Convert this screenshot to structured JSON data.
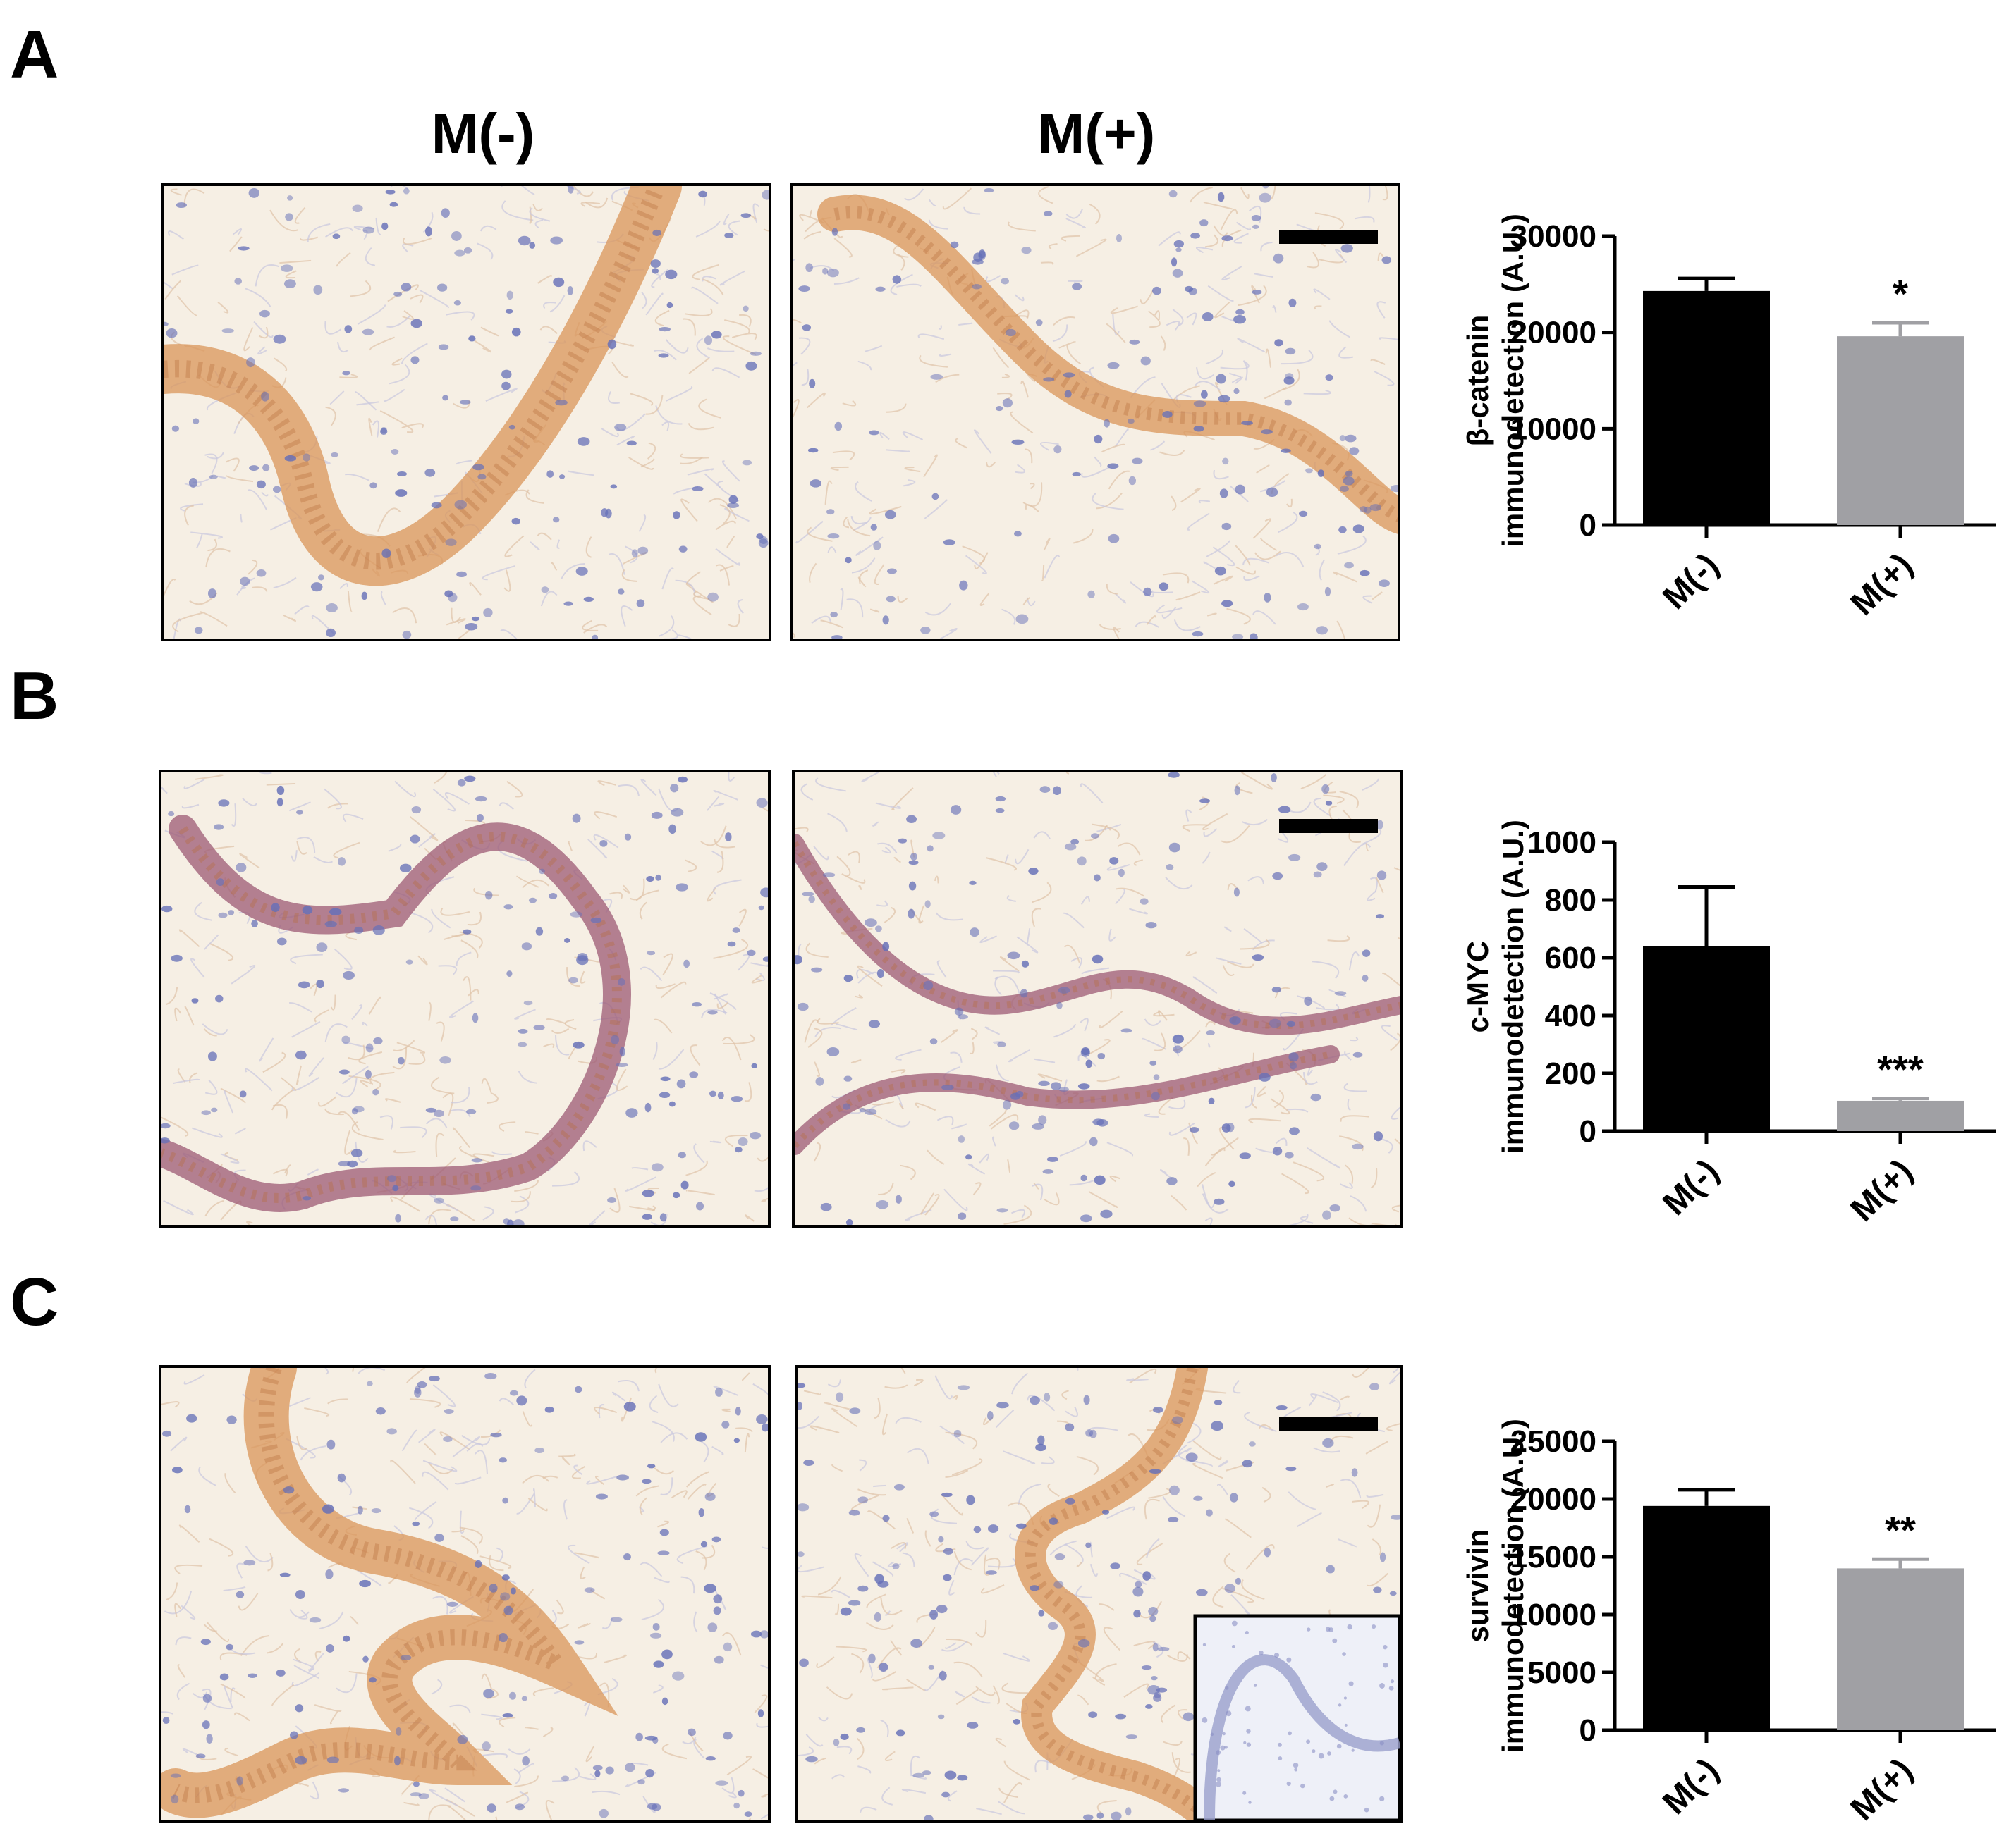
{
  "panels": [
    {
      "letter": "A"
    },
    {
      "letter": "B"
    },
    {
      "letter": "C"
    }
  ],
  "columns": [
    "M(-)",
    "M(+)"
  ],
  "colors": {
    "bar_minus": "#000000",
    "bar_plus": "#a0a0a4",
    "stain_brown": "#d9955a",
    "stain_purple": "#9c5a74",
    "nuclei": "#6670b8",
    "background": "#f6efe4"
  },
  "chart_data": [
    {
      "type": "bar",
      "categories": [
        "M(-)",
        "M(+)"
      ],
      "values": [
        24300,
        19600
      ],
      "errors": [
        1300,
        1400
      ],
      "significance": [
        "",
        "*"
      ],
      "ylabel_line1": "β-catenin",
      "ylabel_line2": "immunodetection  (A.U.)",
      "ylim": [
        0,
        30000
      ],
      "yticks": [
        0,
        10000,
        20000,
        30000
      ],
      "ytick_labels": [
        "0",
        "10000",
        "20000",
        "30000"
      ]
    },
    {
      "type": "bar",
      "categories": [
        "M(-)",
        "M(+)"
      ],
      "values": [
        640,
        105
      ],
      "errors": [
        205,
        8
      ],
      "significance": [
        "",
        "***"
      ],
      "ylabel_line1": "c-MYC",
      "ylabel_line2": "immunodetection  (A.U.)",
      "ylim": [
        0,
        1000
      ],
      "yticks": [
        0,
        200,
        400,
        600,
        800,
        1000
      ],
      "ytick_labels": [
        "0",
        "200",
        "400",
        "600",
        "800",
        "1000"
      ]
    },
    {
      "type": "bar",
      "categories": [
        "M(-)",
        "M(+)"
      ],
      "values": [
        19400,
        14000
      ],
      "errors": [
        1400,
        800
      ],
      "significance": [
        "",
        "**"
      ],
      "ylabel_line1": "survivin",
      "ylabel_line2": "immunodetection  (A.U.)",
      "ylim": [
        0,
        25000
      ],
      "yticks": [
        0,
        5000,
        10000,
        15000,
        20000,
        25000
      ],
      "ytick_labels": [
        "0",
        "5000",
        "10000",
        "15000",
        "20000",
        "25000"
      ]
    }
  ]
}
